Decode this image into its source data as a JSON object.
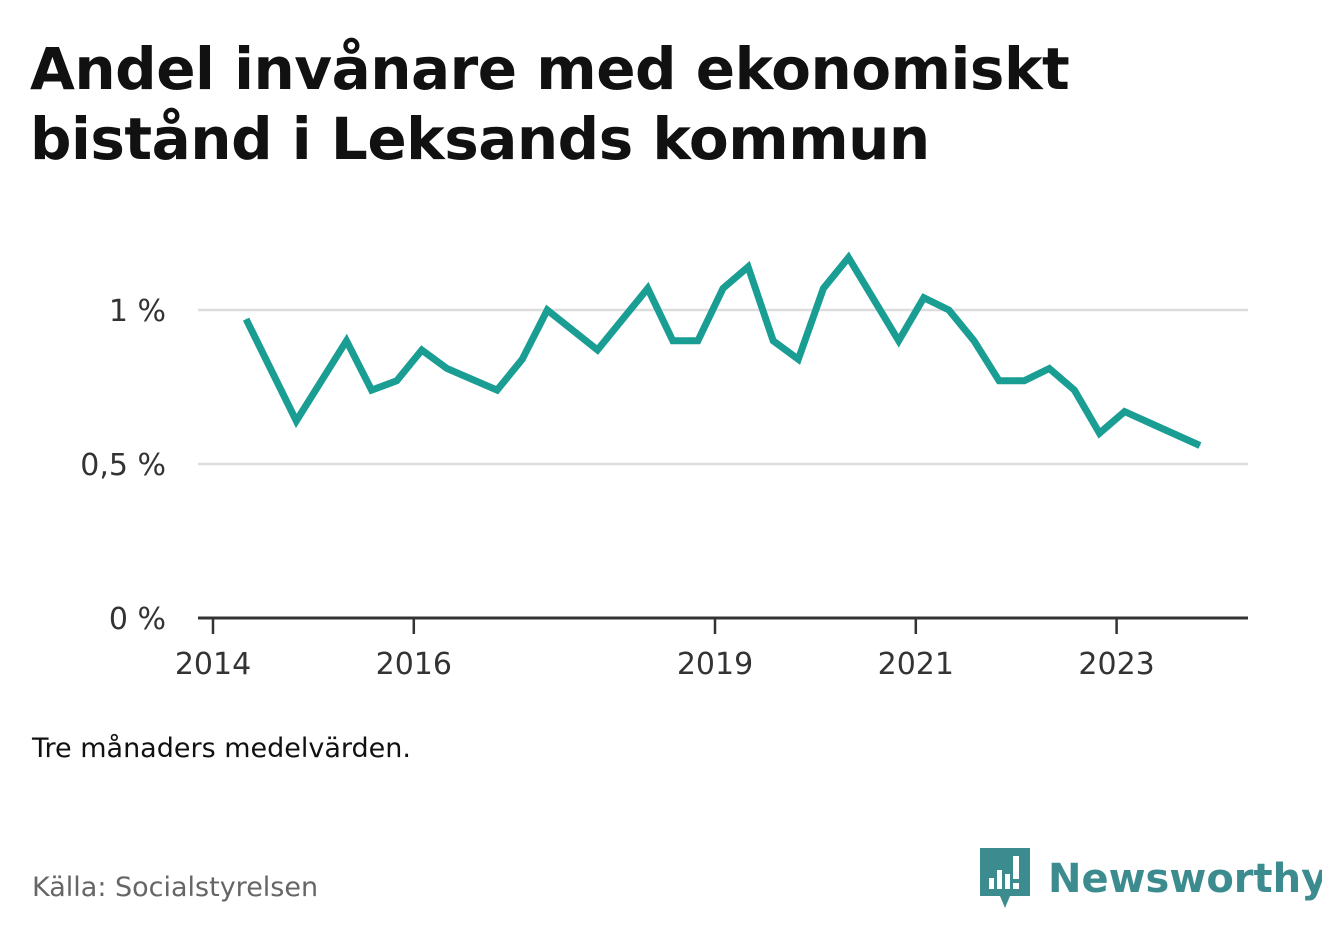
{
  "title": "Andel invånare med ekonomiskt bistånd i Leksands kommun",
  "note": "Tre månaders medelvärden.",
  "source": "Källa: Socialstyrelsen",
  "brand": {
    "name": "Newsworthy",
    "icon": "newsworthy-logo-icon",
    "color": "#3c8c8f"
  },
  "colors": {
    "line": "#1a9e94",
    "grid": "#dddddd",
    "axis": "#333333"
  },
  "chart_data": {
    "type": "line",
    "title": "Andel invånare med ekonomiskt bistånd i Leksands kommun",
    "xlabel": "",
    "ylabel": "",
    "x_ticks": [
      {
        "value": 2014.0,
        "label": "2014"
      },
      {
        "value": 2016.0,
        "label": "2016"
      },
      {
        "value": 2019.0,
        "label": "2019"
      },
      {
        "value": 2021.0,
        "label": "2021"
      },
      {
        "value": 2023.0,
        "label": "2023"
      }
    ],
    "y_ticks": [
      {
        "value": 0,
        "label": "0 %"
      },
      {
        "value": 0.5,
        "label": "0,5 %"
      },
      {
        "value": 1.0,
        "label": "1 %"
      }
    ],
    "xlim": [
      2014.0,
      2024.3
    ],
    "ylim": [
      0,
      1.0
    ],
    "grid": "horizontal",
    "series": [
      {
        "x": [
          2014.33,
          2014.83,
          2015.33,
          2015.58,
          2015.83,
          2016.08,
          2016.33,
          2016.83,
          2017.08,
          2017.33,
          2017.83,
          2018.33,
          2018.58,
          2018.83,
          2019.08,
          2019.33,
          2019.58,
          2019.83,
          2020.08,
          2020.33,
          2020.83,
          2021.08,
          2021.33,
          2021.58,
          2021.83,
          2022.08,
          2022.33,
          2022.58,
          2022.83,
          2023.08,
          2023.83
        ],
        "values": [
          0.97,
          0.64,
          0.9,
          0.74,
          0.77,
          0.87,
          0.81,
          0.74,
          0.84,
          1.0,
          0.87,
          1.07,
          0.9,
          0.9,
          1.07,
          1.14,
          0.9,
          0.84,
          1.07,
          1.17,
          0.9,
          1.04,
          1.0,
          0.9,
          0.77,
          0.77,
          0.81,
          0.74,
          0.6,
          0.67,
          0.56
        ]
      }
    ]
  }
}
